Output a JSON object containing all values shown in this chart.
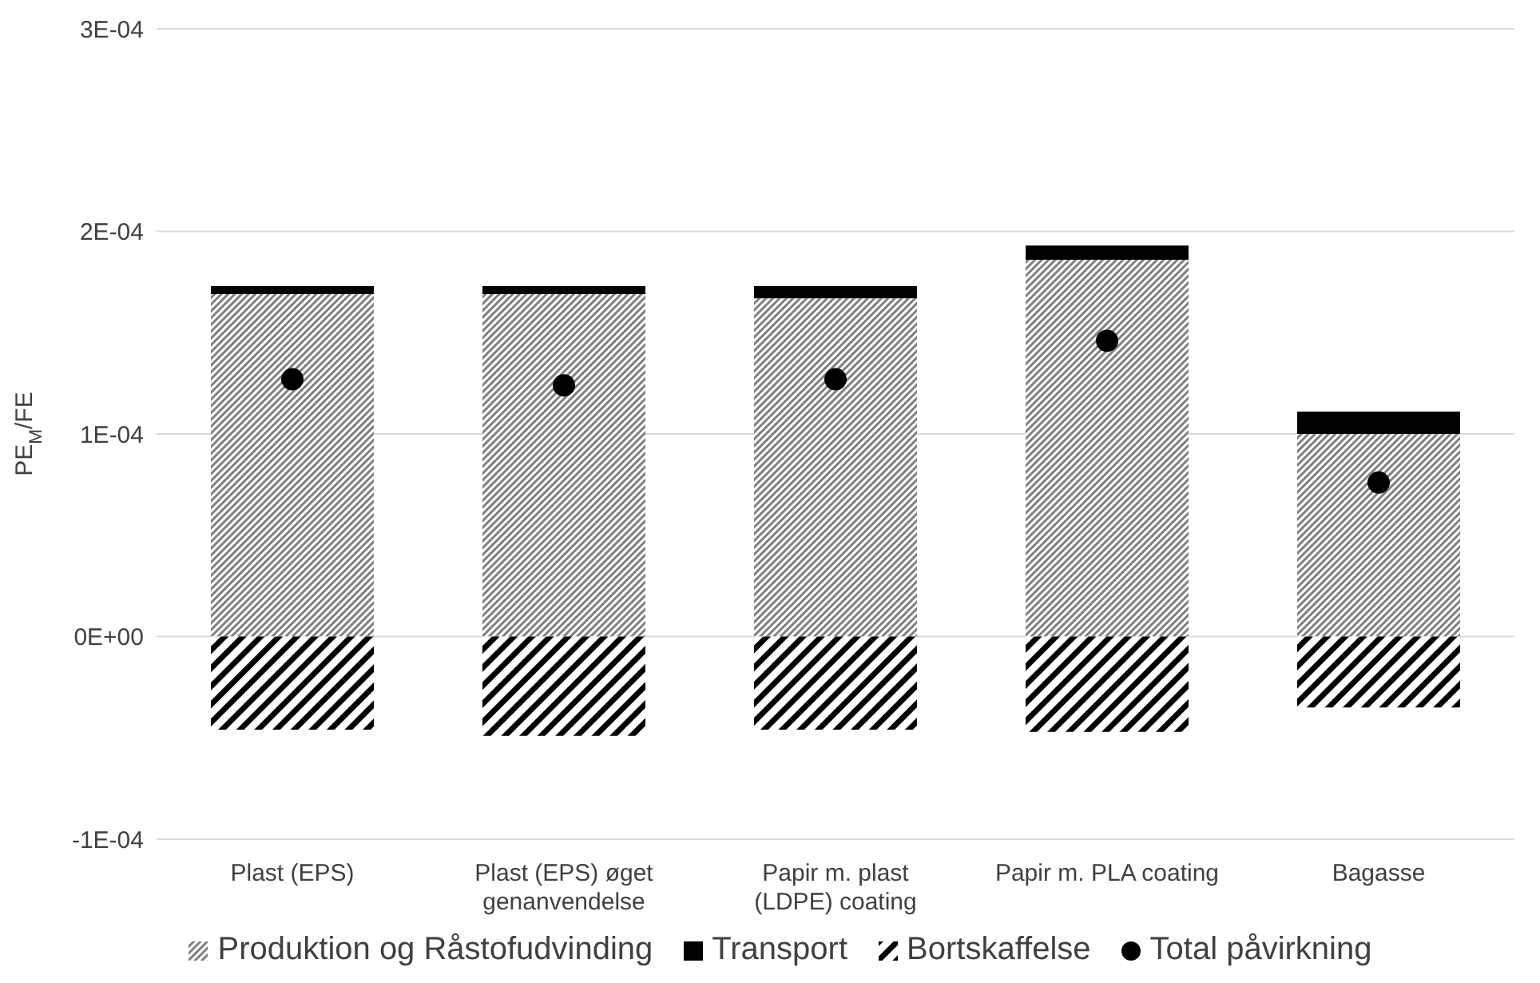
{
  "chart_data": {
    "type": "bar",
    "stacked": true,
    "ylabel": "PE$_{M}$/FE",
    "categories": [
      "Plast (EPS)",
      "Plast (EPS) øget genanvendelse",
      "Papir m. plast (LDPE) coating",
      "Papir m. PLA coating",
      "Bagasse"
    ],
    "series": [
      {
        "name": "Produktion og Råstofudvinding",
        "color": "#808080",
        "values": [
          0.000169,
          0.000169,
          0.000167,
          0.000186,
          0.0001
        ]
      },
      {
        "name": "Transport",
        "color": "#000000",
        "values": [
          4e-06,
          4e-06,
          6e-06,
          7e-06,
          1.1e-05
        ]
      },
      {
        "name": "Bortskaffelse",
        "color": "#000000",
        "values": [
          -4.6e-05,
          -4.9e-05,
          -4.6e-05,
          -4.7e-05,
          -3.5e-05
        ]
      },
      {
        "name": "Total påvirkning",
        "type": "scatter",
        "color": "#000000",
        "marker": "circle",
        "values": [
          0.000127,
          0.000124,
          0.000127,
          0.000146,
          7.6e-05
        ]
      }
    ],
    "ylim": [
      -0.0001,
      0.0003
    ],
    "yticks": [
      {
        "value": -0.0001,
        "label": "-1E-04"
      },
      {
        "value": 0,
        "label": "0E+00"
      },
      {
        "value": 0.0001,
        "label": "1E-04"
      },
      {
        "value": 0.0002,
        "label": "2E-04"
      },
      {
        "value": 0.0003,
        "label": "3E-04"
      }
    ],
    "grid": "y",
    "legend": "bottom"
  }
}
